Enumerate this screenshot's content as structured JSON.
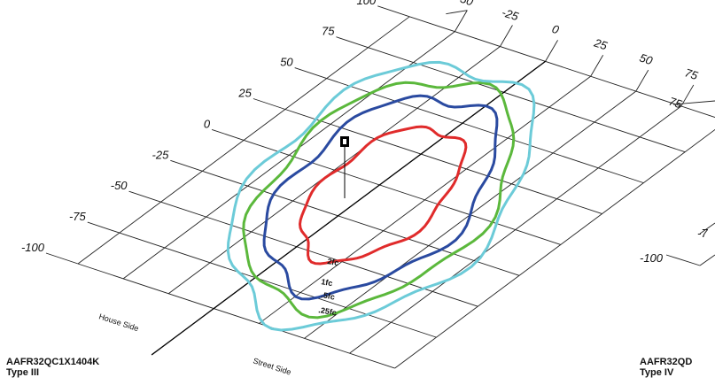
{
  "left_plot": {
    "x_ticks": [
      "-50",
      "-25",
      "0",
      "25",
      "50",
      "75"
    ],
    "y_ticks": [
      "100",
      "75",
      "50",
      "25",
      "0",
      "-25",
      "-50",
      "-75",
      "-100"
    ],
    "house_side_label": "House Side",
    "street_side_label": "Street Side",
    "contours": [
      {
        "label": "2fc",
        "color": "#e02b2b"
      },
      {
        "label": "1fc",
        "color": "#2a4aa0"
      },
      {
        "label": ".5fc",
        "color": "#5bb83c"
      },
      {
        "label": ".25fc",
        "color": "#6ccbd8"
      }
    ],
    "model": "AAFR32QC1X1404K",
    "type": "Type III"
  },
  "right_plot": {
    "tick_partial_1": "-7",
    "tick_partial_2": "-100",
    "model_partial": "AAFR32QD",
    "type": "Type IV"
  }
}
